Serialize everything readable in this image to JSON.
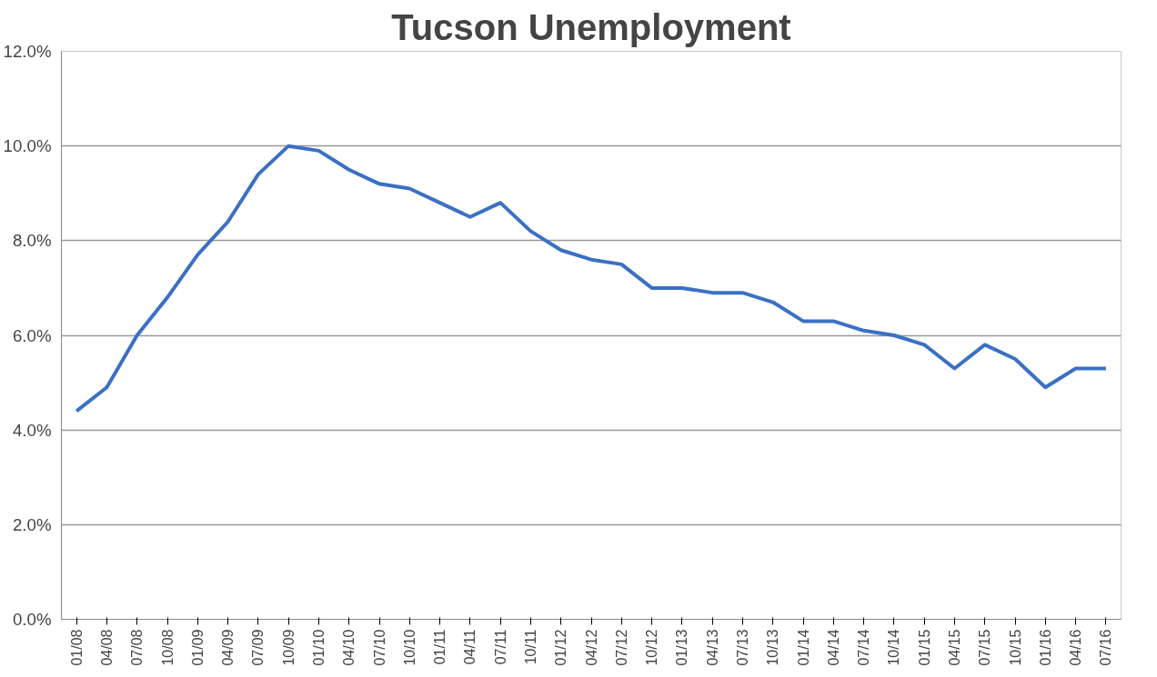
{
  "chart_data": {
    "type": "line",
    "title": "Tucson Unemployment",
    "categories": [
      "01/08",
      "04/08",
      "07/08",
      "10/08",
      "01/09",
      "04/09",
      "07/09",
      "10/09",
      "01/10",
      "04/10",
      "07/10",
      "10/10",
      "01/11",
      "04/11",
      "07/11",
      "10/11",
      "01/12",
      "04/12",
      "07/12",
      "10/12",
      "01/13",
      "04/13",
      "07/13",
      "10/13",
      "01/14",
      "04/14",
      "07/14",
      "10/14",
      "01/15",
      "04/15",
      "07/15",
      "10/15",
      "01/16",
      "04/16",
      "07/16"
    ],
    "series": [
      {
        "color": "#3b70c4",
        "values": [
          4.4,
          4.9,
          6.0,
          6.8,
          7.7,
          8.4,
          9.4,
          10.0,
          9.9,
          9.5,
          9.2,
          9.1,
          8.8,
          8.5,
          8.8,
          8.2,
          7.8,
          7.6,
          7.5,
          7.0,
          7.0,
          6.9,
          6.9,
          6.7,
          6.3,
          6.3,
          6.1,
          6.0,
          5.8,
          5.3,
          5.8,
          5.5,
          4.9,
          5.3,
          5.3
        ]
      }
    ],
    "ylim": [
      0,
      12
    ],
    "yticks": [
      {
        "value": 0,
        "label": "0.0%"
      },
      {
        "value": 2,
        "label": "2.0%"
      },
      {
        "value": 4,
        "label": "4.0%"
      },
      {
        "value": 6,
        "label": "6.0%"
      },
      {
        "value": 8,
        "label": "8.0%"
      },
      {
        "value": 10,
        "label": "10.0%"
      },
      {
        "value": 12,
        "label": "12.0%"
      }
    ],
    "grid": "y",
    "marker": "none",
    "line_style": "solid"
  }
}
